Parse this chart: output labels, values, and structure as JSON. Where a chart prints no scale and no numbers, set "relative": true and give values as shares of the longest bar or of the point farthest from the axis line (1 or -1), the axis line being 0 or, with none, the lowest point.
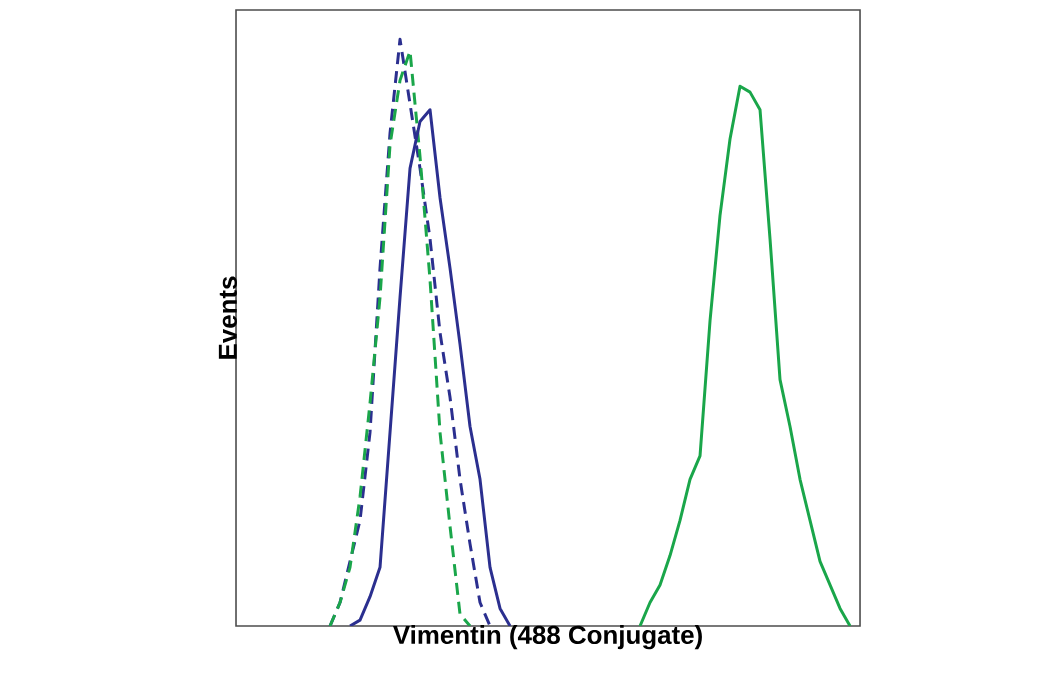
{
  "chart_data": {
    "type": "line",
    "relative": true,
    "xlabel": "Vimentin (488 Conjugate)",
    "ylabel": "Events",
    "categories": [
      null,
      null,
      null,
      null,
      null,
      null,
      null,
      null,
      null,
      null,
      null,
      null,
      null,
      null,
      null,
      null,
      null,
      null,
      null,
      null,
      null,
      null,
      null,
      null,
      null,
      null,
      null,
      null,
      null,
      null,
      null,
      null,
      null,
      null,
      null,
      null,
      null,
      null,
      null,
      null,
      null,
      null,
      null,
      null,
      null,
      null,
      null,
      null,
      null,
      null,
      null,
      null,
      null,
      null,
      null,
      null,
      null,
      null,
      null,
      null,
      null,
      null,
      null
    ],
    "series": [
      {
        "color": "#2b2f8f",
        "line_style": "dashed",
        "values": [
          null,
          null,
          null,
          null,
          null,
          null,
          null,
          null,
          null,
          0,
          0.04,
          0.11,
          0.18,
          0.33,
          0.61,
          0.84,
          1.0,
          0.89,
          0.78,
          0.66,
          0.5,
          0.39,
          0.25,
          0.14,
          0.04,
          0,
          null,
          null,
          null,
          null,
          null,
          null,
          null,
          null,
          null,
          null,
          null,
          null,
          null,
          null,
          null,
          null,
          null,
          null,
          null,
          null,
          null,
          null,
          null,
          null,
          null,
          null,
          null,
          null,
          null,
          null,
          null,
          null,
          null,
          null,
          null,
          null,
          null
        ]
      },
      {
        "color": "#1aa64a",
        "line_style": "dashed",
        "values": [
          null,
          null,
          null,
          null,
          null,
          null,
          null,
          null,
          null,
          0,
          0.04,
          0.1,
          0.22,
          0.38,
          0.56,
          0.82,
          0.93,
          0.98,
          0.8,
          0.59,
          0.33,
          0.17,
          0.02,
          0,
          null,
          null,
          null,
          null,
          null,
          null,
          null,
          null,
          null,
          null,
          null,
          null,
          null,
          null,
          null,
          null,
          null,
          null,
          null,
          null,
          null,
          null,
          null,
          null,
          null,
          null,
          null,
          null,
          null,
          null,
          null,
          null,
          null,
          null,
          null,
          null,
          null,
          null,
          null
        ]
      },
      {
        "color": "#2b2f8f",
        "line_style": "solid",
        "values": [
          null,
          null,
          null,
          null,
          null,
          null,
          null,
          null,
          null,
          null,
          null,
          0,
          0.01,
          0.05,
          0.1,
          0.33,
          0.56,
          0.78,
          0.86,
          0.88,
          0.73,
          0.61,
          0.48,
          0.34,
          0.25,
          0.1,
          0.03,
          0,
          null,
          null,
          null,
          null,
          null,
          null,
          null,
          null,
          null,
          null,
          null,
          null,
          null,
          null,
          null,
          null,
          null,
          null,
          null,
          null,
          null,
          null,
          null,
          null,
          null,
          null,
          null,
          null,
          null,
          null,
          null,
          null,
          null,
          null,
          null
        ]
      },
      {
        "color": "#1aa64a",
        "line_style": "solid",
        "values": [
          null,
          null,
          null,
          null,
          null,
          null,
          null,
          null,
          null,
          null,
          null,
          null,
          null,
          null,
          null,
          null,
          null,
          null,
          null,
          null,
          null,
          null,
          null,
          null,
          null,
          null,
          null,
          null,
          null,
          null,
          null,
          null,
          null,
          null,
          null,
          null,
          null,
          null,
          null,
          null,
          0,
          0.04,
          0.07,
          0.12,
          0.18,
          0.25,
          0.29,
          0.52,
          0.7,
          0.83,
          0.92,
          0.91,
          0.88,
          0.66,
          0.42,
          0.34,
          0.25,
          0.18,
          0.11,
          0.07,
          0.03,
          0,
          null
        ]
      }
    ]
  }
}
